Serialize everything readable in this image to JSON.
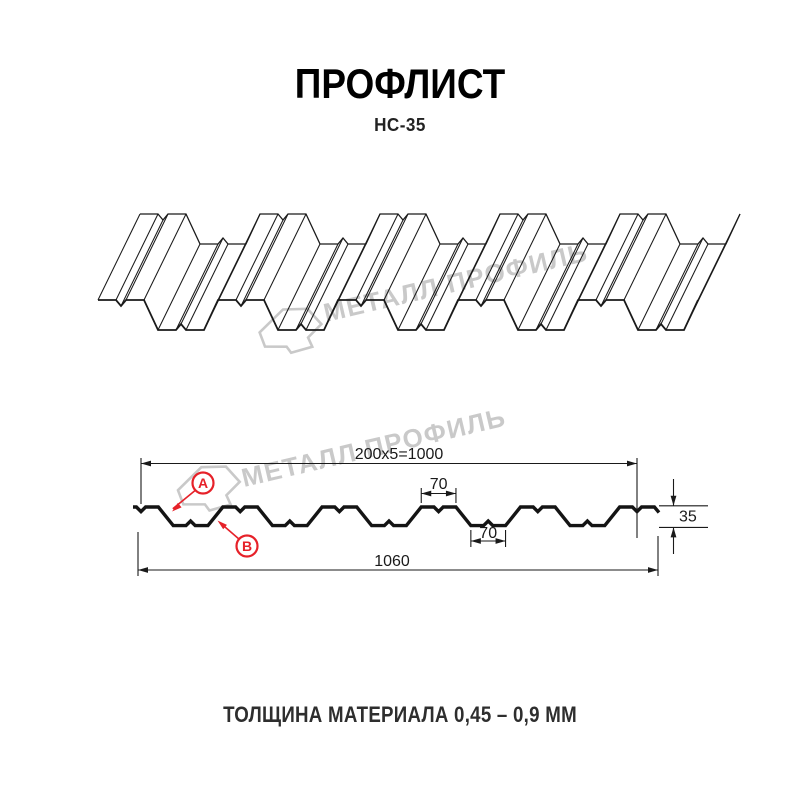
{
  "title": "ПРОФЛИСТ",
  "subtitle": "НС-35",
  "footer_note": "ТОЛЩИНА МАТЕРИАЛА 0,45 – 0,9 ММ",
  "watermark": {
    "brand": "МЕТАЛЛ ПРОФИЛЬ"
  },
  "diagram": {
    "dim_top_span": "200x5=1000",
    "dim_crest_width": "70",
    "dim_valley_width": "70",
    "dim_profile_height": "35",
    "dim_total_width": "1060",
    "label_a": "А",
    "label_b": "В"
  },
  "colors": {
    "line": "#1a1a1a",
    "red": "#e62129",
    "watermark": "#c9c9c9"
  }
}
